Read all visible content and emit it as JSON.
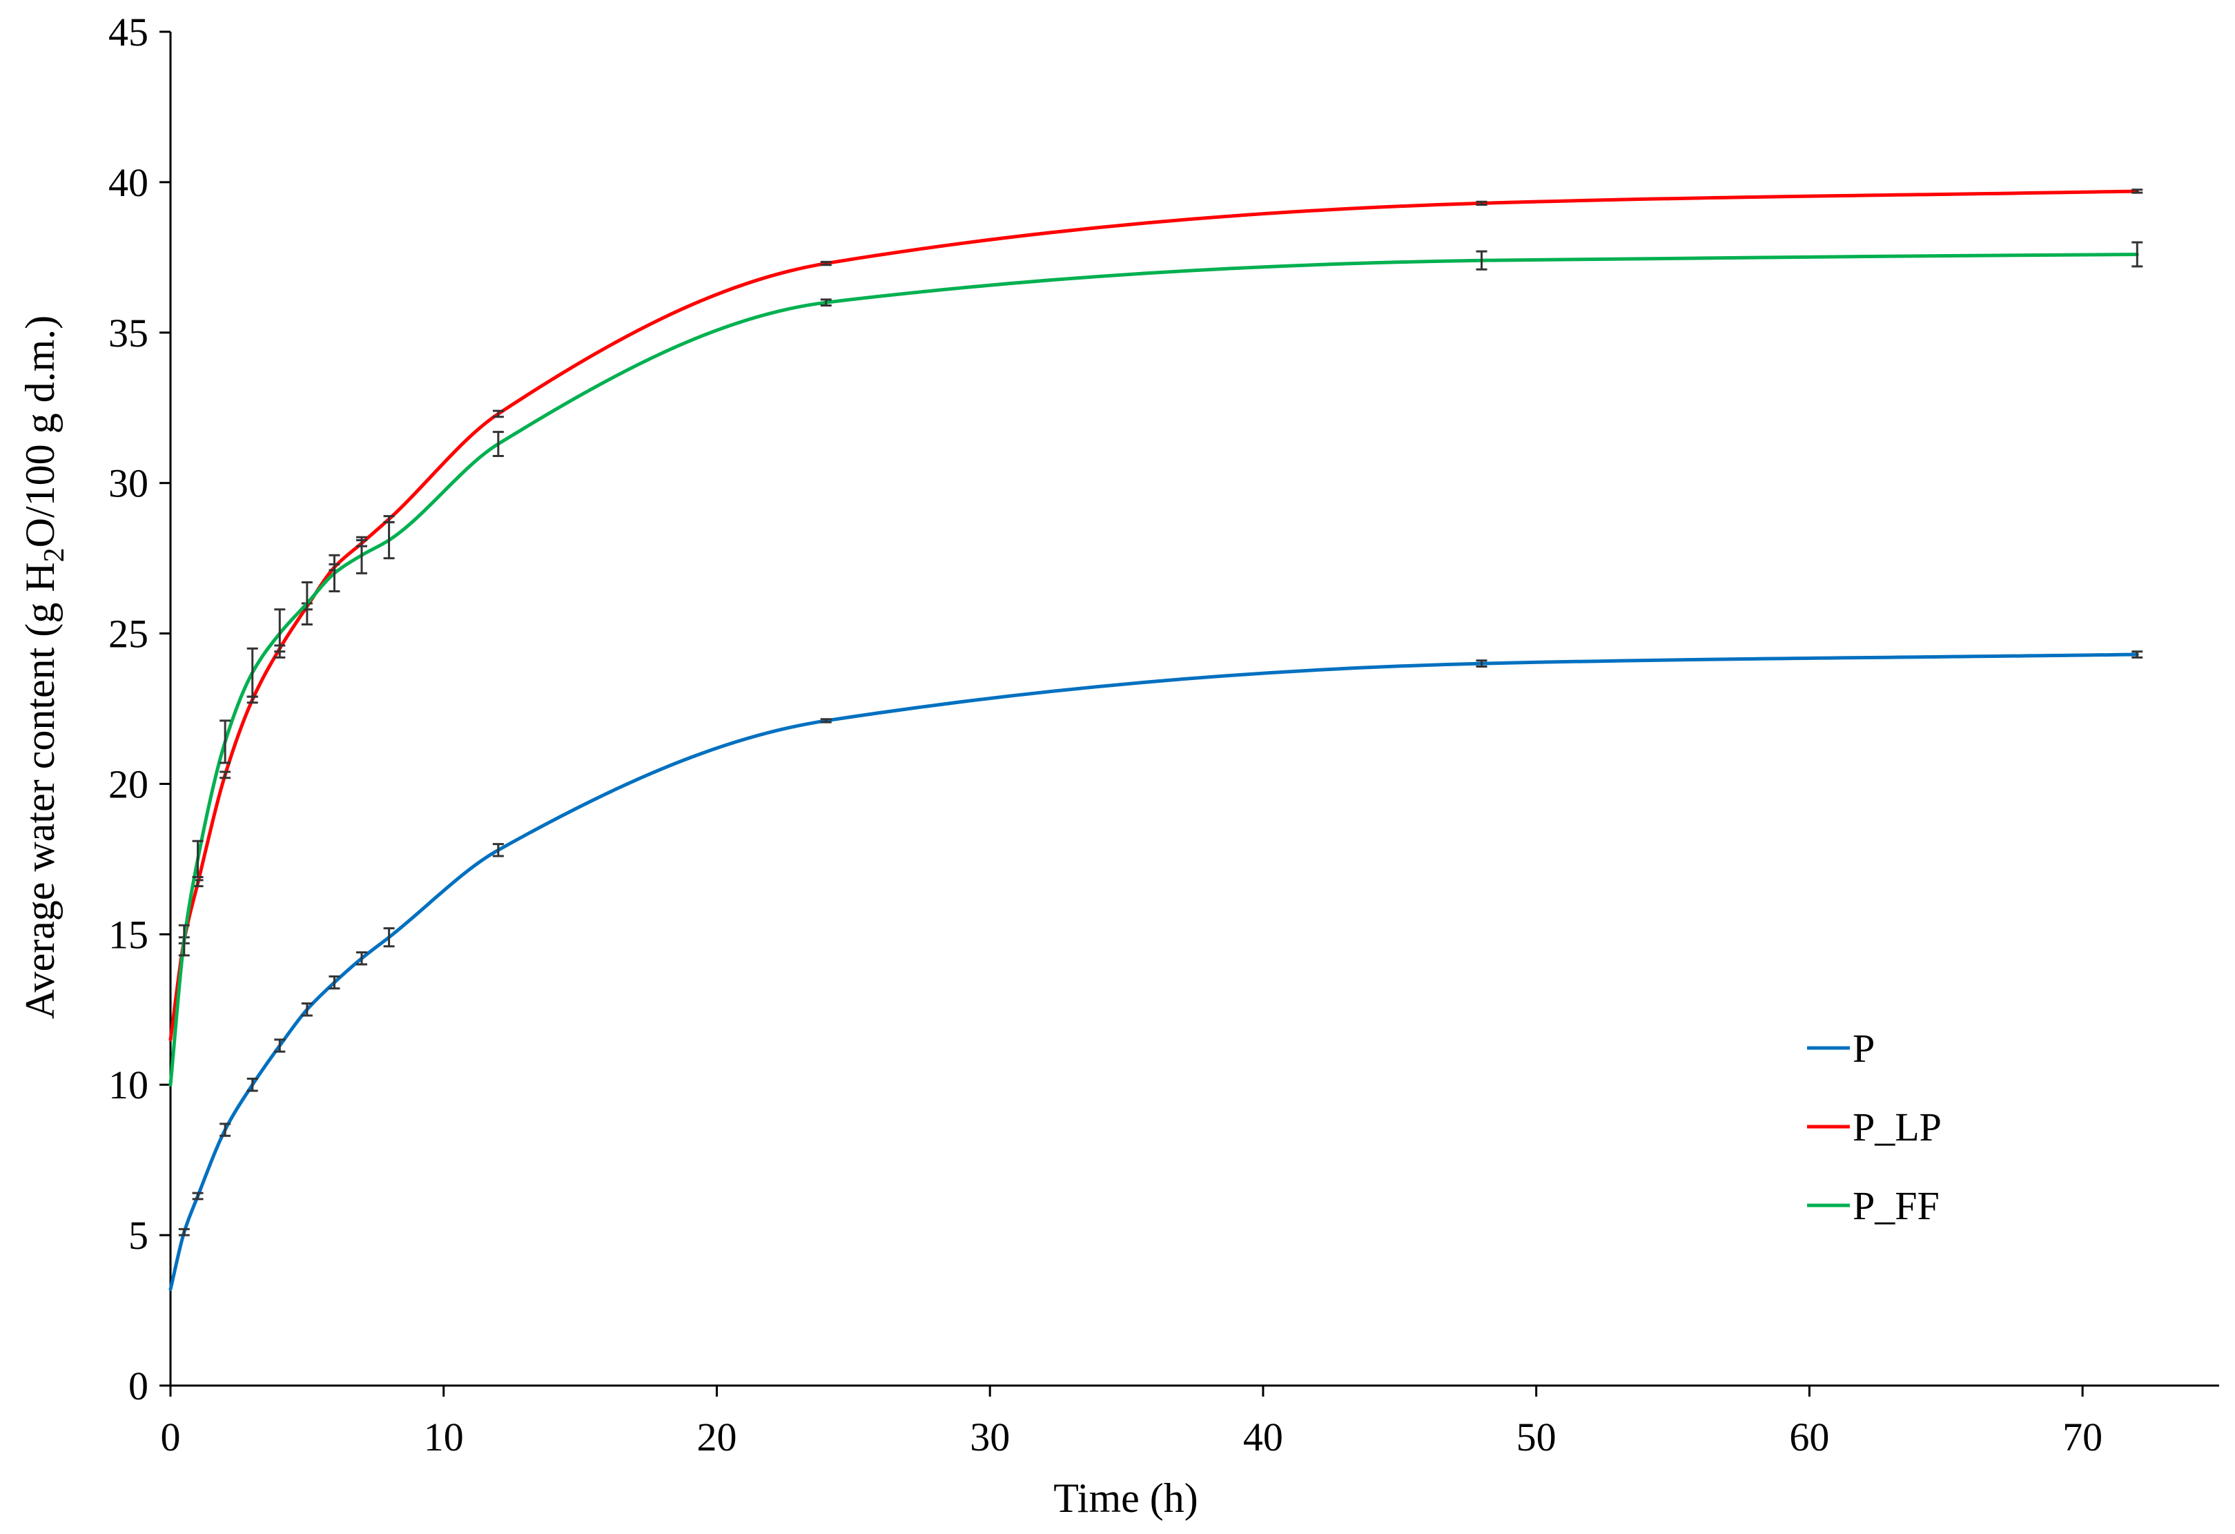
{
  "chart_data": {
    "type": "line",
    "title": "",
    "xlabel": "Time (h)",
    "ylabel": {
      "prefix": "Average water content (g H",
      "sub": "2",
      "suffix": "O/100 g d.m.)"
    },
    "xlim": [
      0,
      75
    ],
    "ylim": [
      0,
      45
    ],
    "xticks": [
      0,
      10,
      20,
      30,
      40,
      50,
      60,
      70
    ],
    "yticks": [
      0,
      5,
      10,
      15,
      20,
      25,
      30,
      35,
      40,
      45
    ],
    "grid": false,
    "legend_position": "bottom-right",
    "series": [
      {
        "name": "P",
        "color": "#0070C0",
        "x": [
          0,
          0.5,
          1,
          2,
          3,
          4,
          5,
          6,
          7,
          8,
          12,
          24,
          48,
          72
        ],
        "y": [
          3.2,
          5.1,
          6.3,
          8.5,
          10.0,
          11.3,
          12.5,
          13.4,
          14.2,
          14.9,
          17.8,
          22.1,
          24.0,
          24.3
        ],
        "err": [
          0,
          0.1,
          0.1,
          0.2,
          0.2,
          0.2,
          0.2,
          0.2,
          0.2,
          0.3,
          0.2,
          0.05,
          0.1,
          0.1
        ]
      },
      {
        "name": "P_LP",
        "color": "#FF0000",
        "x": [
          0,
          0.5,
          1,
          2,
          3,
          4,
          5,
          6,
          7,
          8,
          12,
          24,
          48,
          72
        ],
        "y": [
          11.5,
          14.8,
          16.7,
          20.3,
          22.8,
          24.5,
          25.9,
          27.2,
          28.0,
          28.8,
          32.3,
          37.3,
          39.3,
          39.7
        ],
        "err": [
          0,
          0.1,
          0.1,
          0.1,
          0.1,
          0.1,
          0.1,
          0.1,
          0.1,
          0.1,
          0.1,
          0.05,
          0.05,
          0.05
        ]
      },
      {
        "name": "P_FF",
        "color": "#00B050",
        "x": [
          0,
          0.5,
          1,
          2,
          3,
          4,
          5,
          6,
          7,
          8,
          12,
          24,
          48,
          72
        ],
        "y": [
          10.0,
          14.8,
          17.5,
          21.4,
          23.7,
          25.0,
          26.0,
          27.0,
          27.6,
          28.1,
          31.3,
          36.0,
          37.4,
          37.6
        ],
        "err": [
          0,
          0.5,
          0.6,
          0.7,
          0.8,
          0.8,
          0.7,
          0.6,
          0.6,
          0.6,
          0.4,
          0.1,
          0.3,
          0.4
        ]
      }
    ]
  }
}
